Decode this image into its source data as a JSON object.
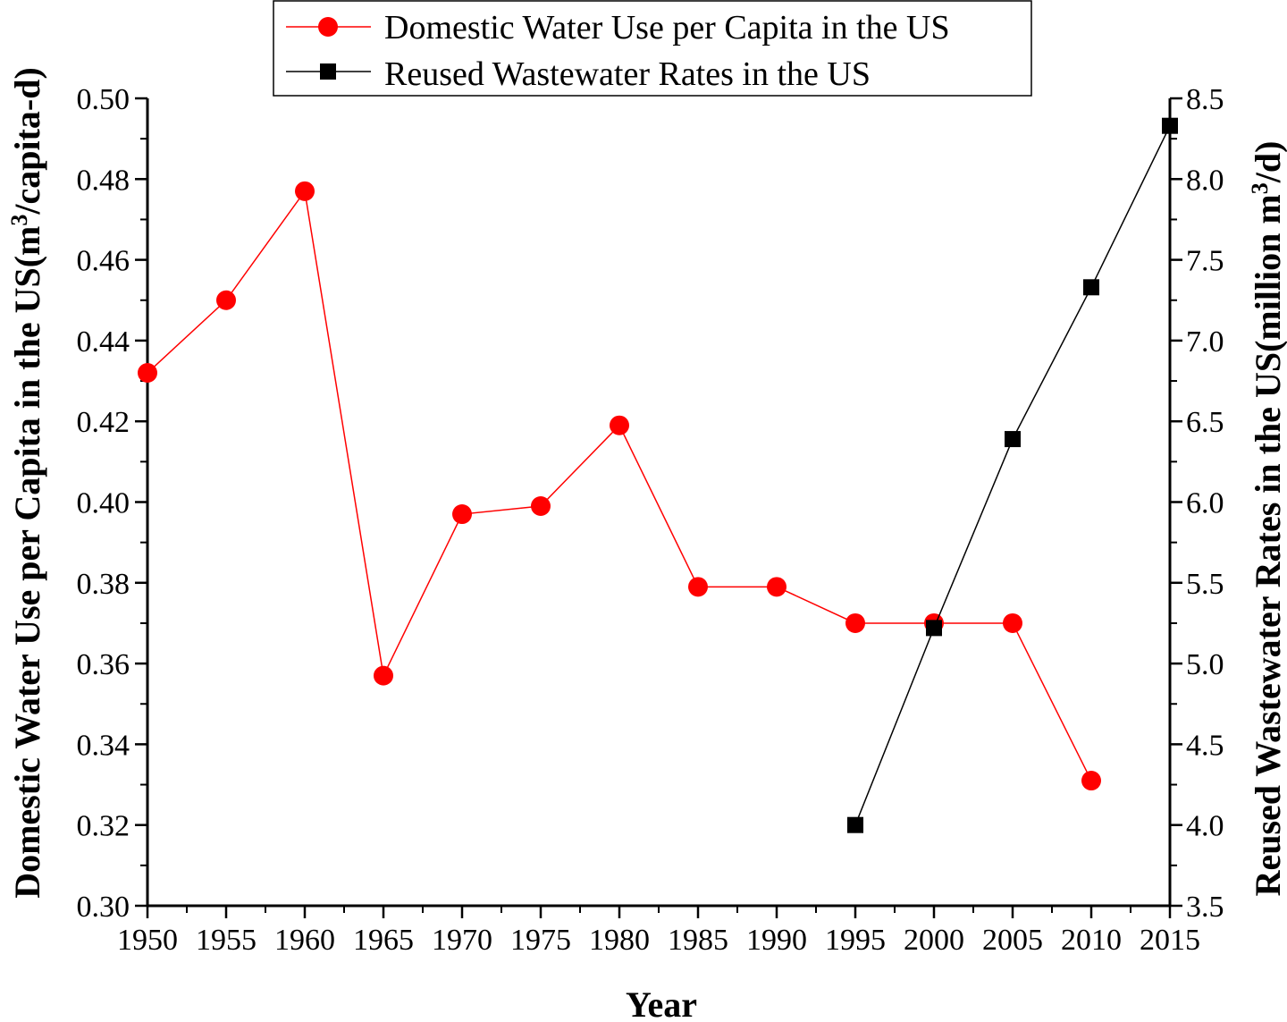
{
  "chart_data": {
    "type": "line",
    "x": [
      1950,
      1955,
      1960,
      1965,
      1970,
      1975,
      1980,
      1985,
      1990,
      1995,
      2000,
      2005,
      2010,
      2015
    ],
    "xlabel": "Year",
    "xlim": [
      1950,
      2015
    ],
    "xticks": [
      "1950",
      "1955",
      "1960",
      "1965",
      "1970",
      "1975",
      "1980",
      "1985",
      "1990",
      "1995",
      "2000",
      "2005",
      "2010",
      "2015"
    ],
    "ylabel_left": {
      "prefix": "Domestic Water Use per Capita in the US(m",
      "sup": "3",
      "suffix": "/capita-d)"
    },
    "ylabel_right": {
      "prefix": "Reused Wastewater Rates in the US(million m",
      "sup": "3",
      "suffix": "/d)"
    },
    "ylim_left": [
      0.3,
      0.5
    ],
    "ylim_right": [
      3.5,
      8.5
    ],
    "yticks_left": [
      "0.30",
      "0.32",
      "0.34",
      "0.36",
      "0.38",
      "0.40",
      "0.42",
      "0.44",
      "0.46",
      "0.48",
      "0.50"
    ],
    "yticks_right": [
      "3.5",
      "4.0",
      "4.5",
      "5.0",
      "5.5",
      "6.0",
      "6.5",
      "7.0",
      "7.5",
      "8.0",
      "8.5"
    ],
    "grid": false,
    "legend_position": "top-center",
    "series": [
      {
        "name": "Domestic Water Use per Capita in the US",
        "axis": "left",
        "color": "#ff0000",
        "marker": "circle",
        "x": [
          1950,
          1955,
          1960,
          1965,
          1970,
          1975,
          1980,
          1985,
          1990,
          1995,
          2000,
          2005,
          2010
        ],
        "values": [
          0.432,
          0.45,
          0.477,
          0.357,
          0.397,
          0.399,
          0.419,
          0.379,
          0.379,
          0.37,
          0.37,
          0.37,
          0.331
        ]
      },
      {
        "name": "Reused Wastewater Rates in the US",
        "axis": "right",
        "color": "#000000",
        "marker": "square",
        "x": [
          1995,
          2000,
          2005,
          2010,
          2015
        ],
        "values": [
          4.0,
          5.22,
          6.39,
          7.33,
          8.33
        ]
      }
    ]
  }
}
